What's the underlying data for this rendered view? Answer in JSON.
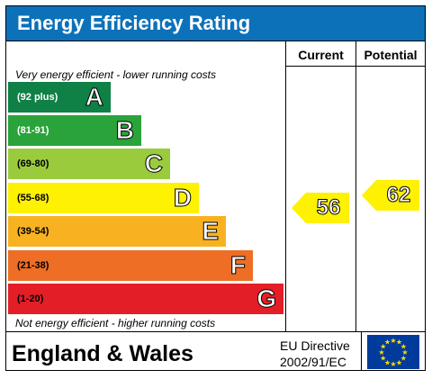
{
  "title": "Energy Efficiency Rating",
  "columns": {
    "current": "Current",
    "potential": "Potential"
  },
  "top_note": "Very energy efficient - lower running costs",
  "bottom_note": "Not energy efficient - higher running costs",
  "bands": [
    {
      "range": "(92 plus)",
      "letter": "A",
      "color": "#0f8046",
      "text_color": "#ffffff"
    },
    {
      "range": "(81-91)",
      "letter": "B",
      "color": "#2aa33a",
      "text_color": "#ffffff"
    },
    {
      "range": "(69-80)",
      "letter": "C",
      "color": "#9acb3c",
      "text_color": "#000000"
    },
    {
      "range": "(55-68)",
      "letter": "D",
      "color": "#fef101",
      "text_color": "#000000"
    },
    {
      "range": "(39-54)",
      "letter": "E",
      "color": "#f8b221",
      "text_color": "#000000"
    },
    {
      "range": "(21-38)",
      "letter": "F",
      "color": "#ed6e24",
      "text_color": "#000000"
    },
    {
      "range": "(1-20)",
      "letter": "G",
      "color": "#e41e26",
      "text_color": "#000000"
    }
  ],
  "ratings": {
    "current": {
      "value": "56",
      "band": "D",
      "color": "#fef101"
    },
    "potential": {
      "value": "62",
      "band": "D",
      "color": "#fef101"
    }
  },
  "footer": {
    "country": "England & Wales",
    "directive_line1": "EU Directive",
    "directive_line2": "2002/91/EC"
  }
}
